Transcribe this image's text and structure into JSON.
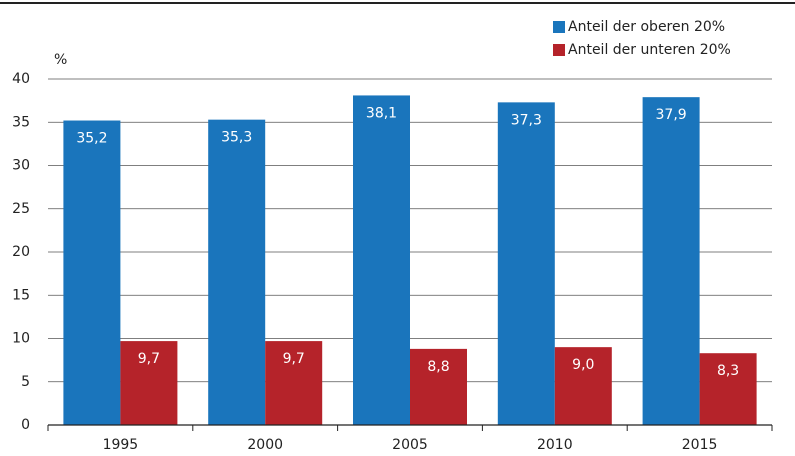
{
  "chart_data": {
    "type": "bar",
    "y_label": "%",
    "categories": [
      "1995",
      "2000",
      "2005",
      "2010",
      "2015"
    ],
    "series": [
      {
        "name": "Anteil der oberen 20%",
        "color": "#1a75bc",
        "values": [
          35.2,
          35.3,
          38.1,
          37.3,
          37.9
        ],
        "value_labels": [
          "35,2",
          "35,3",
          "38,1",
          "37,3",
          "37,9"
        ]
      },
      {
        "name": "Anteil der unteren 20%",
        "color": "#b5232a",
        "values": [
          9.7,
          9.7,
          8.8,
          9.0,
          8.3
        ],
        "value_labels": [
          "9,7",
          "9,7",
          "8,8",
          "9,0",
          "8,3"
        ]
      }
    ],
    "ylim": [
      0,
      40
    ],
    "yticks": [
      0,
      5,
      10,
      15,
      20,
      25,
      30,
      35,
      40
    ],
    "grid": true,
    "legend": "top-right"
  }
}
